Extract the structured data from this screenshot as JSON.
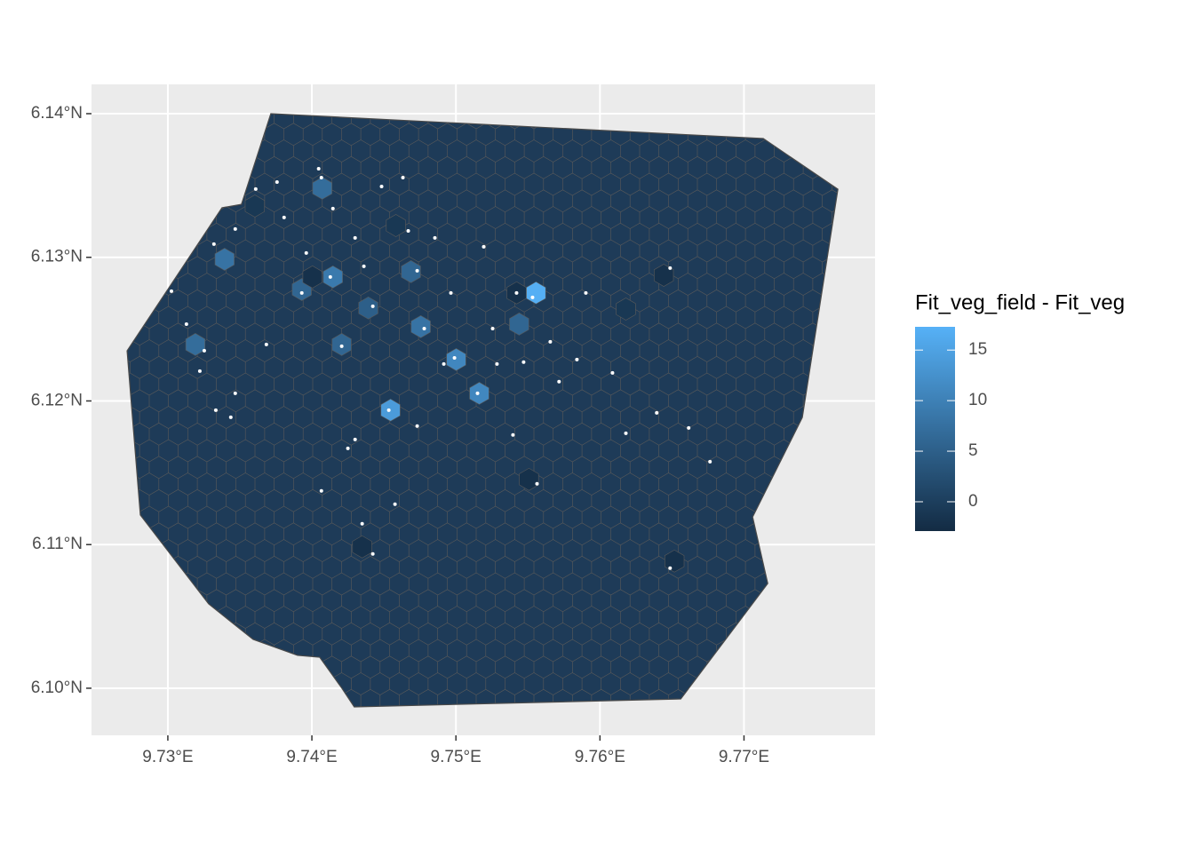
{
  "chart_data": {
    "type": "hexmap",
    "legend_title": "Fit_veg_field - Fit_veg",
    "xlim": [
      9.7247,
      9.7791
    ],
    "ylim": [
      6.09672,
      6.14204
    ],
    "xticks": [
      {
        "value": 9.73,
        "label": "9.73°E"
      },
      {
        "value": 9.74,
        "label": "9.74°E"
      },
      {
        "value": 9.75,
        "label": "9.75°E"
      },
      {
        "value": 9.76,
        "label": "9.76°E"
      },
      {
        "value": 9.77,
        "label": "9.77°E"
      }
    ],
    "yticks": [
      {
        "value": 6.1,
        "label": "6.10°N"
      },
      {
        "value": 6.11,
        "label": "6.11°N"
      },
      {
        "value": 6.12,
        "label": "6.12°N"
      },
      {
        "value": 6.13,
        "label": "6.13°N"
      },
      {
        "value": 6.14,
        "label": "6.14°N"
      }
    ],
    "grid": true,
    "color_limits": [
      -2.9,
      17.3
    ],
    "color_ticks": [
      0,
      5,
      10,
      15
    ],
    "low_color": "#132B43",
    "high_color": "#56B1F7",
    "hex_fill": "#1e3b58",
    "point_color": "#ffffff",
    "boundary": {
      "lon": [
        9.73715,
        9.77134,
        9.77652,
        9.77405,
        9.7706,
        9.77165,
        9.76561,
        9.74294,
        9.74208,
        9.74054,
        9.739,
        9.73592,
        9.73283,
        9.72809,
        9.72717,
        9.73376,
        9.73511,
        9.73715
      ],
      "lat": [
        6.14,
        6.13827,
        6.13474,
        6.11885,
        6.11192,
        6.10729,
        6.09925,
        6.0987,
        6.1,
        6.10216,
        6.10229,
        6.1034,
        6.10587,
        6.11206,
        6.12349,
        6.13345,
        6.13369,
        6.14
      ]
    },
    "hexes": {
      "lon": [
        9.75556,
        9.74546,
        9.75002,
        9.75162,
        9.74146,
        9.74756,
        9.73394,
        9.73191,
        9.74072,
        9.7393,
        9.74688,
        9.75439,
        9.74207,
        9.74392,
        9.76443,
        9.76517,
        9.74349,
        9.75507,
        9.74004,
        9.75421,
        9.7618,
        9.73604,
        9.74583
      ],
      "lat": [
        6.12752,
        6.11936,
        6.12288,
        6.12053,
        6.12863,
        6.12517,
        6.12986,
        6.12393,
        6.13481,
        6.12776,
        6.129,
        6.12535,
        6.12393,
        6.12647,
        6.12875,
        6.10885,
        6.10984,
        6.11454,
        6.12863,
        6.12752,
        6.1264,
        6.13357,
        6.13221
      ],
      "values": [
        17,
        14,
        11,
        11,
        9,
        8,
        8,
        7,
        7,
        6,
        6,
        6,
        6,
        5,
        -2,
        -2,
        -2,
        -2,
        -2,
        -2,
        -1,
        -1,
        -1
      ]
    },
    "points": {
      "lon": [
        9.74047,
        9.74066,
        9.73758,
        9.7361,
        9.73468,
        9.7332,
        9.73025,
        9.73129,
        9.73253,
        9.73222,
        9.73468,
        9.73333,
        9.73437,
        9.73684,
        9.73807,
        9.73961,
        9.7393,
        9.74128,
        9.74207,
        9.743,
        9.74361,
        9.74423,
        9.74534,
        9.74577,
        9.74423,
        9.74349,
        9.74066,
        9.7425,
        9.743,
        9.74632,
        9.74669,
        9.74731,
        9.7478,
        9.74731,
        9.74916,
        9.7499,
        9.74854,
        9.74965,
        9.75193,
        9.7515,
        9.75285,
        9.75396,
        9.75421,
        9.75532,
        9.75563,
        9.75655,
        9.7584,
        9.75902,
        9.76087,
        9.7618,
        9.76394,
        9.76616,
        9.76764,
        9.76487,
        9.76487,
        9.7547,
        9.75716,
        9.75255,
        9.74484,
        9.74146
      ],
      "lat": [
        6.13617,
        6.13555,
        6.13524,
        6.13475,
        6.13197,
        6.13092,
        6.12764,
        6.12535,
        6.1235,
        6.12208,
        6.12053,
        6.11936,
        6.11886,
        6.12393,
        6.13277,
        6.1303,
        6.12752,
        6.12863,
        6.12381,
        6.13135,
        6.12937,
        6.12659,
        6.11936,
        6.11281,
        6.10935,
        6.11145,
        6.11374,
        6.1167,
        6.11732,
        6.13555,
        6.13184,
        6.12906,
        6.12504,
        6.11825,
        6.12257,
        6.123,
        6.13135,
        6.12752,
        6.13073,
        6.12053,
        6.12257,
        6.11763,
        6.12752,
        6.12721,
        6.11423,
        6.12412,
        6.12288,
        6.12752,
        6.12195,
        6.11775,
        6.11917,
        6.11812,
        6.11577,
        6.12925,
        6.10836,
        6.1227,
        6.12134,
        6.12504,
        6.13493,
        6.13339
      ]
    }
  }
}
